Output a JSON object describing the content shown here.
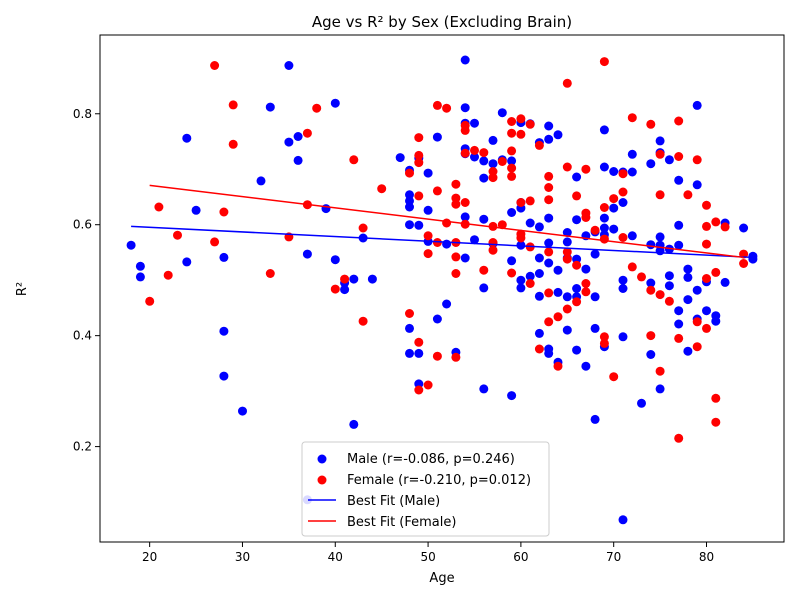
{
  "chart_data": {
    "type": "scatter",
    "title": "Age vs R² by Sex (Excluding Brain)",
    "xlabel": "Age",
    "ylabel": "R²",
    "xlim": [
      14.65,
      88.35
    ],
    "ylim": [
      0.028,
      0.942
    ],
    "xticks": [
      20,
      30,
      40,
      50,
      60,
      70,
      80
    ],
    "yticks": [
      0.2,
      0.4,
      0.6,
      0.8
    ],
    "xtick_labels": [
      "20",
      "30",
      "40",
      "50",
      "60",
      "70",
      "80"
    ],
    "ytick_labels": [
      "0.2",
      "0.4",
      "0.6",
      "0.8"
    ],
    "grid": false,
    "legend_position": "lower-center",
    "series": [
      {
        "name": "Male (r=-0.086, p=0.246)",
        "kind": "scatter",
        "color": "#0000ff",
        "points": [
          [
            18,
            0.563
          ],
          [
            19,
            0.525
          ],
          [
            19,
            0.506
          ],
          [
            24,
            0.756
          ],
          [
            24,
            0.533
          ],
          [
            25,
            0.626
          ],
          [
            28,
            0.541
          ],
          [
            28,
            0.408
          ],
          [
            28,
            0.327
          ],
          [
            30,
            0.264
          ],
          [
            32,
            0.679
          ],
          [
            33,
            0.812
          ],
          [
            35,
            0.887
          ],
          [
            35,
            0.749
          ],
          [
            36,
            0.759
          ],
          [
            36,
            0.716
          ],
          [
            37,
            0.547
          ],
          [
            37,
            0.104
          ],
          [
            39,
            0.629
          ],
          [
            40,
            0.819
          ],
          [
            40,
            0.537
          ],
          [
            41,
            0.495
          ],
          [
            41,
            0.483
          ],
          [
            42,
            0.502
          ],
          [
            42,
            0.24
          ],
          [
            43,
            0.576
          ],
          [
            44,
            0.502
          ],
          [
            47,
            0.721
          ],
          [
            48,
            0.698
          ],
          [
            48,
            0.654
          ],
          [
            48,
            0.643
          ],
          [
            48,
            0.632
          ],
          [
            48,
            0.6
          ],
          [
            48,
            0.413
          ],
          [
            48,
            0.368
          ],
          [
            49,
            0.72
          ],
          [
            49,
            0.599
          ],
          [
            49,
            0.368
          ],
          [
            49,
            0.313
          ],
          [
            50,
            0.693
          ],
          [
            50,
            0.626
          ],
          [
            50,
            0.57
          ],
          [
            51,
            0.758
          ],
          [
            51,
            0.43
          ],
          [
            52,
            0.457
          ],
          [
            52,
            0.565
          ],
          [
            53,
            0.37
          ],
          [
            54,
            0.897
          ],
          [
            54,
            0.811
          ],
          [
            54,
            0.783
          ],
          [
            54,
            0.737
          ],
          [
            54,
            0.728
          ],
          [
            54,
            0.614
          ],
          [
            54,
            0.54
          ],
          [
            55,
            0.783
          ],
          [
            55,
            0.722
          ],
          [
            55,
            0.573
          ],
          [
            56,
            0.715
          ],
          [
            56,
            0.684
          ],
          [
            56,
            0.61
          ],
          [
            56,
            0.486
          ],
          [
            56,
            0.304
          ],
          [
            57,
            0.752
          ],
          [
            57,
            0.71
          ],
          [
            57,
            0.566
          ],
          [
            58,
            0.802
          ],
          [
            58,
            0.717
          ],
          [
            59,
            0.715
          ],
          [
            59,
            0.622
          ],
          [
            59,
            0.535
          ],
          [
            59,
            0.292
          ],
          [
            60,
            0.784
          ],
          [
            60,
            0.64
          ],
          [
            60,
            0.63
          ],
          [
            60,
            0.563
          ],
          [
            60,
            0.5
          ],
          [
            60,
            0.486
          ],
          [
            61,
            0.782
          ],
          [
            61,
            0.603
          ],
          [
            61,
            0.507
          ],
          [
            62,
            0.748
          ],
          [
            62,
            0.596
          ],
          [
            62,
            0.54
          ],
          [
            62,
            0.512
          ],
          [
            62,
            0.471
          ],
          [
            62,
            0.404
          ],
          [
            63,
            0.778
          ],
          [
            63,
            0.754
          ],
          [
            63,
            0.612
          ],
          [
            63,
            0.567
          ],
          [
            63,
            0.531
          ],
          [
            63,
            0.376
          ],
          [
            63,
            0.368
          ],
          [
            64,
            0.762
          ],
          [
            64,
            0.518
          ],
          [
            64,
            0.478
          ],
          [
            64,
            0.352
          ],
          [
            65,
            0.586
          ],
          [
            65,
            0.569
          ],
          [
            65,
            0.54
          ],
          [
            65,
            0.47
          ],
          [
            65,
            0.41
          ],
          [
            66,
            0.686
          ],
          [
            66,
            0.609
          ],
          [
            66,
            0.538
          ],
          [
            66,
            0.485
          ],
          [
            66,
            0.47
          ],
          [
            66,
            0.374
          ],
          [
            67,
            0.58
          ],
          [
            67,
            0.52
          ],
          [
            67,
            0.345
          ],
          [
            68,
            0.587
          ],
          [
            68,
            0.547
          ],
          [
            68,
            0.47
          ],
          [
            68,
            0.413
          ],
          [
            68,
            0.249
          ],
          [
            69,
            0.771
          ],
          [
            69,
            0.704
          ],
          [
            69,
            0.612
          ],
          [
            69,
            0.594
          ],
          [
            69,
            0.582
          ],
          [
            69,
            0.38
          ],
          [
            70,
            0.696
          ],
          [
            70,
            0.63
          ],
          [
            70,
            0.592
          ],
          [
            71,
            0.695
          ],
          [
            71,
            0.64
          ],
          [
            71,
            0.5
          ],
          [
            71,
            0.485
          ],
          [
            71,
            0.398
          ],
          [
            71,
            0.068
          ],
          [
            72,
            0.727
          ],
          [
            72,
            0.695
          ],
          [
            72,
            0.58
          ],
          [
            73,
            0.278
          ],
          [
            74,
            0.71
          ],
          [
            74,
            0.564
          ],
          [
            74,
            0.495
          ],
          [
            74,
            0.366
          ],
          [
            75,
            0.751
          ],
          [
            75,
            0.73
          ],
          [
            75,
            0.578
          ],
          [
            75,
            0.563
          ],
          [
            75,
            0.553
          ],
          [
            75,
            0.304
          ],
          [
            76,
            0.717
          ],
          [
            76,
            0.556
          ],
          [
            76,
            0.508
          ],
          [
            76,
            0.49
          ],
          [
            77,
            0.68
          ],
          [
            77,
            0.599
          ],
          [
            77,
            0.563
          ],
          [
            77,
            0.445
          ],
          [
            77,
            0.421
          ],
          [
            78,
            0.52
          ],
          [
            78,
            0.505
          ],
          [
            78,
            0.465
          ],
          [
            78,
            0.372
          ],
          [
            79,
            0.815
          ],
          [
            79,
            0.672
          ],
          [
            79,
            0.482
          ],
          [
            79,
            0.43
          ],
          [
            80,
            0.497
          ],
          [
            80,
            0.445
          ],
          [
            81,
            0.436
          ],
          [
            81,
            0.426
          ],
          [
            82,
            0.603
          ],
          [
            82,
            0.496
          ],
          [
            84,
            0.594
          ],
          [
            85,
            0.543
          ],
          [
            85,
            0.538
          ]
        ]
      },
      {
        "name": "Female (r=-0.210, p=0.012)",
        "kind": "scatter",
        "color": "#ff0000",
        "points": [
          [
            20,
            0.462
          ],
          [
            21,
            0.632
          ],
          [
            22,
            0.509
          ],
          [
            23,
            0.581
          ],
          [
            27,
            0.887
          ],
          [
            27,
            0.569
          ],
          [
            28,
            0.623
          ],
          [
            29,
            0.816
          ],
          [
            29,
            0.745
          ],
          [
            33,
            0.512
          ],
          [
            35,
            0.578
          ],
          [
            37,
            0.765
          ],
          [
            37,
            0.636
          ],
          [
            38,
            0.81
          ],
          [
            40,
            0.484
          ],
          [
            41,
            0.502
          ],
          [
            42,
            0.717
          ],
          [
            43,
            0.594
          ],
          [
            43,
            0.426
          ],
          [
            45,
            0.665
          ],
          [
            48,
            0.693
          ],
          [
            48,
            0.44
          ],
          [
            49,
            0.757
          ],
          [
            49,
            0.725
          ],
          [
            49,
            0.712
          ],
          [
            49,
            0.652
          ],
          [
            49,
            0.388
          ],
          [
            49,
            0.302
          ],
          [
            50,
            0.58
          ],
          [
            50,
            0.548
          ],
          [
            50,
            0.311
          ],
          [
            51,
            0.815
          ],
          [
            51,
            0.661
          ],
          [
            51,
            0.568
          ],
          [
            51,
            0.363
          ],
          [
            52,
            0.81
          ],
          [
            52,
            0.603
          ],
          [
            53,
            0.673
          ],
          [
            53,
            0.648
          ],
          [
            53,
            0.637
          ],
          [
            53,
            0.568
          ],
          [
            53,
            0.542
          ],
          [
            53,
            0.512
          ],
          [
            53,
            0.361
          ],
          [
            54,
            0.779
          ],
          [
            54,
            0.77
          ],
          [
            54,
            0.729
          ],
          [
            54,
            0.64
          ],
          [
            54,
            0.601
          ],
          [
            55,
            0.734
          ],
          [
            56,
            0.73
          ],
          [
            56,
            0.518
          ],
          [
            57,
            0.696
          ],
          [
            57,
            0.685
          ],
          [
            57,
            0.597
          ],
          [
            57,
            0.568
          ],
          [
            57,
            0.554
          ],
          [
            58,
            0.714
          ],
          [
            58,
            0.6
          ],
          [
            59,
            0.786
          ],
          [
            59,
            0.765
          ],
          [
            59,
            0.733
          ],
          [
            59,
            0.702
          ],
          [
            59,
            0.687
          ],
          [
            59,
            0.513
          ],
          [
            60,
            0.791
          ],
          [
            60,
            0.763
          ],
          [
            60,
            0.64
          ],
          [
            60,
            0.583
          ],
          [
            60,
            0.576
          ],
          [
            61,
            0.781
          ],
          [
            61,
            0.643
          ],
          [
            61,
            0.56
          ],
          [
            61,
            0.494
          ],
          [
            62,
            0.743
          ],
          [
            62,
            0.376
          ],
          [
            63,
            0.687
          ],
          [
            63,
            0.667
          ],
          [
            63,
            0.645
          ],
          [
            63,
            0.551
          ],
          [
            63,
            0.477
          ],
          [
            63,
            0.425
          ],
          [
            64,
            0.434
          ],
          [
            64,
            0.345
          ],
          [
            65,
            0.855
          ],
          [
            65,
            0.704
          ],
          [
            65,
            0.551
          ],
          [
            65,
            0.538
          ],
          [
            65,
            0.448
          ],
          [
            66,
            0.652
          ],
          [
            66,
            0.527
          ],
          [
            66,
            0.461
          ],
          [
            67,
            0.7
          ],
          [
            67,
            0.621
          ],
          [
            67,
            0.613
          ],
          [
            67,
            0.494
          ],
          [
            67,
            0.479
          ],
          [
            68,
            0.59
          ],
          [
            69,
            0.894
          ],
          [
            69,
            0.631
          ],
          [
            69,
            0.574
          ],
          [
            69,
            0.398
          ],
          [
            69,
            0.386
          ],
          [
            70,
            0.647
          ],
          [
            70,
            0.326
          ],
          [
            71,
            0.659
          ],
          [
            71,
            0.692
          ],
          [
            71,
            0.577
          ],
          [
            72,
            0.793
          ],
          [
            72,
            0.524
          ],
          [
            73,
            0.506
          ],
          [
            74,
            0.781
          ],
          [
            74,
            0.482
          ],
          [
            74,
            0.4
          ],
          [
            75,
            0.727
          ],
          [
            75,
            0.654
          ],
          [
            75,
            0.474
          ],
          [
            75,
            0.336
          ],
          [
            76,
            0.462
          ],
          [
            77,
            0.787
          ],
          [
            77,
            0.723
          ],
          [
            77,
            0.395
          ],
          [
            77,
            0.215
          ],
          [
            78,
            0.654
          ],
          [
            79,
            0.717
          ],
          [
            79,
            0.425
          ],
          [
            79,
            0.38
          ],
          [
            80,
            0.635
          ],
          [
            80,
            0.597
          ],
          [
            80,
            0.565
          ],
          [
            80,
            0.503
          ],
          [
            80,
            0.413
          ],
          [
            81,
            0.605
          ],
          [
            81,
            0.514
          ],
          [
            81,
            0.287
          ],
          [
            81,
            0.244
          ],
          [
            82,
            0.596
          ],
          [
            84,
            0.547
          ],
          [
            84,
            0.53
          ]
        ]
      },
      {
        "name": "Best Fit (Male)",
        "kind": "line",
        "color": "#0000ff",
        "points": [
          [
            18,
            0.597
          ],
          [
            85,
            0.541
          ]
        ]
      },
      {
        "name": "Best Fit (Female)",
        "kind": "line",
        "color": "#ff0000",
        "points": [
          [
            20,
            0.671
          ],
          [
            84,
            0.541
          ]
        ]
      }
    ]
  }
}
